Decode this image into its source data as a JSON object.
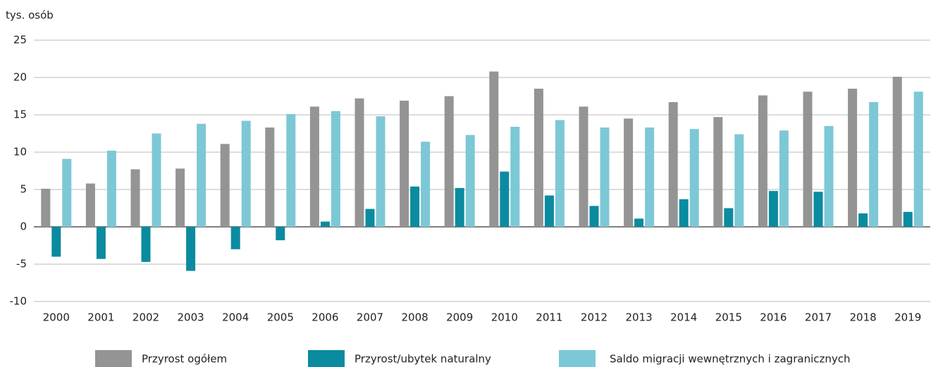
{
  "chart_data": {
    "type": "bar",
    "y_axis_label": "tys. osób",
    "categories": [
      "2000",
      "2001",
      "2002",
      "2003",
      "2004",
      "2005",
      "2006",
      "2007",
      "2008",
      "2009",
      "2010",
      "2011",
      "2012",
      "2013",
      "2014",
      "2015",
      "2016",
      "2017",
      "2018",
      "2019"
    ],
    "series": [
      {
        "name": "Przyrost ogółem",
        "color": "#949494",
        "values": [
          5.1,
          5.8,
          7.7,
          7.8,
          11.1,
          13.3,
          16.1,
          17.2,
          16.9,
          17.5,
          20.8,
          18.5,
          16.1,
          14.5,
          16.7,
          14.7,
          17.6,
          18.1,
          18.5,
          20.1
        ]
      },
      {
        "name": "Przyrost/ubytek naturalny",
        "color": "#0b8b9f",
        "values": [
          -4.0,
          -4.3,
          -4.7,
          -5.9,
          -3.0,
          -1.8,
          0.7,
          2.4,
          5.4,
          5.2,
          7.4,
          4.2,
          2.8,
          1.1,
          3.7,
          2.5,
          4.8,
          4.7,
          1.8,
          2.0
        ]
      },
      {
        "name": "Saldo migracji wewnętrznych i zagranicznych",
        "color": "#7dc8d6",
        "values": [
          9.1,
          10.2,
          12.5,
          13.8,
          14.2,
          15.1,
          15.5,
          14.8,
          11.4,
          12.3,
          13.4,
          14.3,
          13.3,
          13.3,
          13.1,
          12.4,
          12.9,
          13.5,
          16.7,
          18.1
        ]
      }
    ],
    "ylim": [
      -10,
      25
    ],
    "yticks": [
      25,
      20,
      15,
      10,
      5,
      0,
      -5,
      -10
    ],
    "grid": true
  }
}
